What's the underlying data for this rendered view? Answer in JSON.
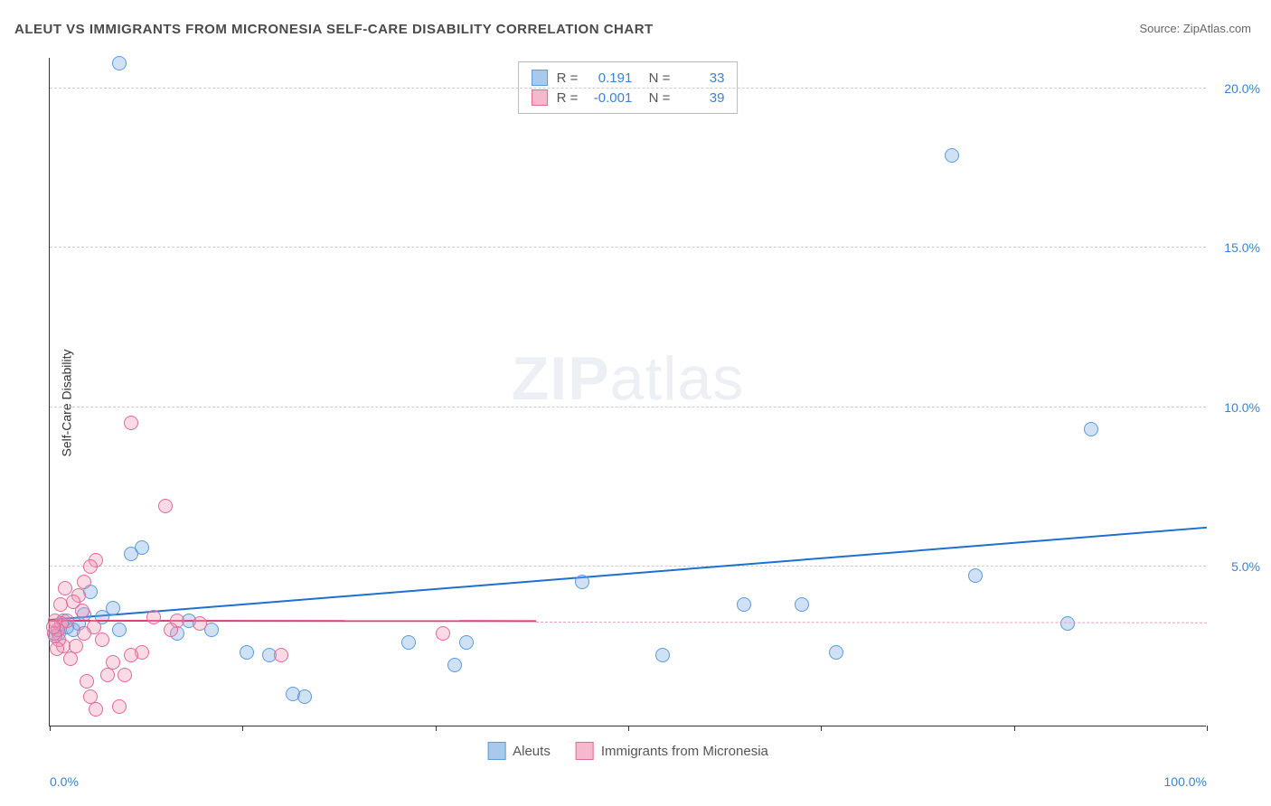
{
  "title": "ALEUT VS IMMIGRANTS FROM MICRONESIA SELF-CARE DISABILITY CORRELATION CHART",
  "source": "Source: ZipAtlas.com",
  "y_axis_label": "Self-Care Disability",
  "watermark": {
    "bold": "ZIP",
    "rest": "atlas"
  },
  "chart": {
    "type": "scatter",
    "xlim": [
      0,
      100
    ],
    "ylim": [
      0,
      21
    ],
    "x_ticks": [
      0,
      16.67,
      33.33,
      50,
      66.67,
      83.33,
      100
    ],
    "x_tick_labels": {
      "0": "0.0%",
      "100": "100.0%"
    },
    "y_ticks": [
      5,
      10,
      15,
      20
    ],
    "y_tick_labels": [
      "5.0%",
      "10.0%",
      "15.0%",
      "20.0%"
    ],
    "background_color": "#ffffff",
    "grid_color": "#cccccc",
    "axis_color": "#333333",
    "tick_label_color": "#3b82d4",
    "marker_radius": 8,
    "marker_stroke_width": 1.5,
    "series": [
      {
        "name": "Aleuts",
        "fill": "rgba(120,170,230,0.35)",
        "stroke": "#5a9bd8",
        "swatch_fill": "#a9c9ec",
        "swatch_border": "#5a9bd8",
        "R": "0.191",
        "N": "33",
        "trend": {
          "x1": 0,
          "y1": 3.3,
          "x2": 100,
          "y2": 6.2,
          "color": "#1f6fd0",
          "width": 2
        },
        "points": [
          [
            6,
            20.8
          ],
          [
            78,
            17.9
          ],
          [
            90,
            9.3
          ],
          [
            80,
            4.7
          ],
          [
            88,
            3.2
          ],
          [
            68,
            2.3
          ],
          [
            65,
            3.8
          ],
          [
            60,
            3.8
          ],
          [
            53,
            2.2
          ],
          [
            46,
            4.5
          ],
          [
            36,
            2.6
          ],
          [
            35,
            1.9
          ],
          [
            31,
            2.6
          ],
          [
            21,
            1.0
          ],
          [
            22,
            0.9
          ],
          [
            19,
            2.2
          ],
          [
            17,
            2.3
          ],
          [
            14,
            3.0
          ],
          [
            12,
            3.3
          ],
          [
            11,
            2.9
          ],
          [
            8,
            5.6
          ],
          [
            7,
            5.4
          ],
          [
            5.5,
            3.7
          ],
          [
            6,
            3.0
          ],
          [
            4.5,
            3.4
          ],
          [
            3.5,
            4.2
          ],
          [
            3,
            3.5
          ],
          [
            2.5,
            3.2
          ],
          [
            2,
            3.0
          ],
          [
            1.5,
            3.1
          ],
          [
            1.2,
            3.3
          ],
          [
            0.8,
            2.9
          ],
          [
            0.5,
            2.8
          ]
        ]
      },
      {
        "name": "Immigrants from Micronesia",
        "fill": "rgba(240,150,180,0.35)",
        "stroke": "#e06a94",
        "swatch_fill": "#f5b8cd",
        "swatch_border": "#e06a94",
        "R": "-0.001",
        "N": "39",
        "trend": {
          "x1": 0,
          "y1": 3.25,
          "x2": 42,
          "y2": 3.24,
          "color": "#e23b77",
          "width": 2
        },
        "trend_dash": {
          "x1": 42,
          "y1": 3.24,
          "x2": 100,
          "y2": 3.22,
          "color": "#e8a0b8"
        },
        "points": [
          [
            7,
            9.5
          ],
          [
            10,
            6.9
          ],
          [
            4,
            5.2
          ],
          [
            3.5,
            5.0
          ],
          [
            3,
            4.5
          ],
          [
            11,
            3.3
          ],
          [
            10.5,
            3.0
          ],
          [
            9,
            3.4
          ],
          [
            8,
            2.3
          ],
          [
            7,
            2.2
          ],
          [
            6.5,
            1.6
          ],
          [
            6,
            0.6
          ],
          [
            5.5,
            2.0
          ],
          [
            5,
            1.6
          ],
          [
            4.5,
            2.7
          ],
          [
            4,
            0.5
          ],
          [
            3.8,
            3.1
          ],
          [
            3.5,
            0.9
          ],
          [
            3.2,
            1.4
          ],
          [
            3,
            2.9
          ],
          [
            2.8,
            3.6
          ],
          [
            2.5,
            4.1
          ],
          [
            2.3,
            2.5
          ],
          [
            2,
            3.9
          ],
          [
            1.8,
            2.1
          ],
          [
            1.5,
            3.3
          ],
          [
            1.3,
            4.3
          ],
          [
            1.2,
            2.5
          ],
          [
            1,
            3.2
          ],
          [
            0.9,
            3.8
          ],
          [
            0.8,
            2.7
          ],
          [
            0.7,
            3.0
          ],
          [
            0.6,
            2.4
          ],
          [
            0.5,
            3.3
          ],
          [
            0.4,
            2.9
          ],
          [
            0.3,
            3.1
          ],
          [
            20,
            2.2
          ],
          [
            34,
            2.9
          ],
          [
            13,
            3.2
          ]
        ]
      }
    ]
  },
  "legend": {
    "series1": "Aleuts",
    "series2": "Immigrants from Micronesia"
  }
}
